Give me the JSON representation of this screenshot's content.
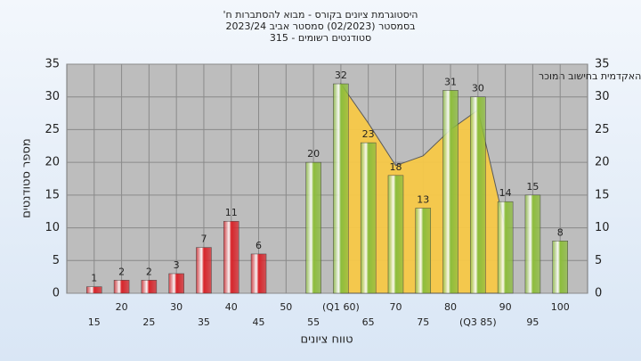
{
  "chart_data": {
    "type": "bar",
    "title": "היסטוגרמת ציונים בקורס - מבוא להסתברות ח'",
    "subtitle": "בסמסטר  (02/2023)  סמסטר אביב 2023/24",
    "subtitle2": "סטודנטים רשומים - 315",
    "annotation": "בהשוואה: ציון סופי במכללה האקדמית בחישוב המוכר",
    "x_label": "טווח ציונים",
    "y_label": "מספר סטודנטים",
    "categories": [
      "15",
      "20",
      "25",
      "30",
      "35",
      "40",
      "45",
      "50",
      "55",
      "(Q1 60)",
      "65",
      "70",
      "75",
      "80",
      "(Q3 85)",
      "90",
      "95",
      "100"
    ],
    "values": [
      1,
      2,
      2,
      3,
      7,
      11,
      6,
      null,
      20,
      32,
      23,
      18,
      13,
      31,
      30,
      14,
      15,
      8
    ],
    "colors": [
      "#d8242a",
      "#d8242a",
      "#d8242a",
      "#d8242a",
      "#d8242a",
      "#d8242a",
      "#d8242a",
      "#d8242a",
      "#8dbd3c",
      "#8dbd3c",
      "#8dbd3c",
      "#8dbd3c",
      "#8dbd3c",
      "#8dbd3c",
      "#8dbd3c",
      "#8dbd3c",
      "#8dbd3c",
      "#8dbd3c"
    ],
    "comparison": {
      "color": "#f7c948",
      "values": [
        null,
        null,
        null,
        null,
        null,
        null,
        null,
        null,
        null,
        32,
        26,
        19.5,
        21,
        25,
        28,
        10,
        null,
        null
      ]
    },
    "ylim": [
      0,
      35
    ],
    "yticks": [
      0,
      5,
      10,
      15,
      20,
      25,
      30,
      35
    ],
    "grid": true
  }
}
